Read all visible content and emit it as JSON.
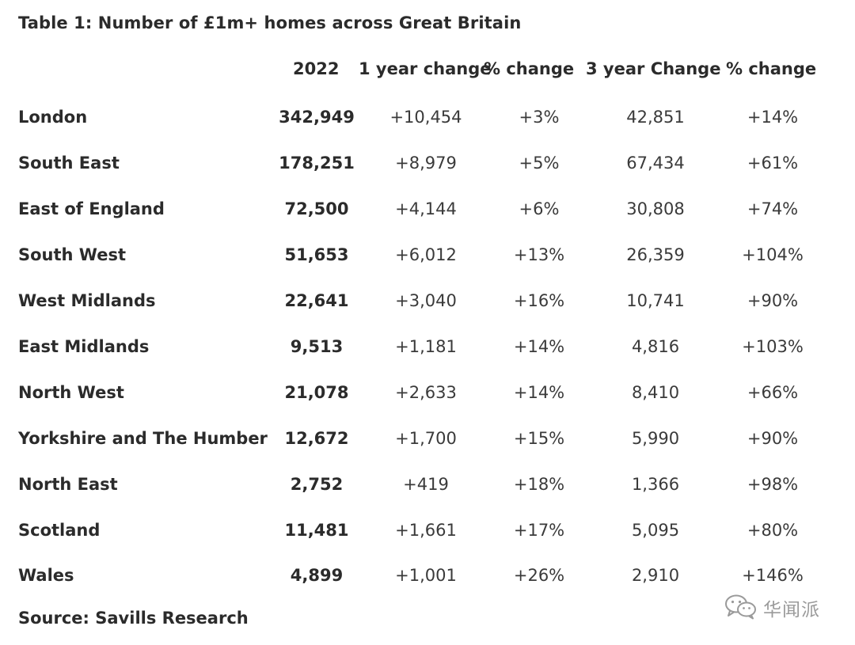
{
  "title": "Table 1: Number of £1m+ homes across Great Britain",
  "headers": {
    "y2022": "2022",
    "one_year_change": "1 year change",
    "pct_change_1": "% change",
    "three_year_change": "3 year Change",
    "pct_change_3": "% change"
  },
  "rows": [
    {
      "region": "London",
      "y2022": "342,949",
      "c1": "+10,454",
      "c2": "+3%",
      "c3": "42,851",
      "c4": "+14%"
    },
    {
      "region": "South East",
      "y2022": "178,251",
      "c1": "+8,979",
      "c2": "+5%",
      "c3": "67,434",
      "c4": "+61%"
    },
    {
      "region": "East of England",
      "y2022": "72,500",
      "c1": "+4,144",
      "c2": "+6%",
      "c3": "30,808",
      "c4": "+74%"
    },
    {
      "region": "South West",
      "y2022": "51,653",
      "c1": "+6,012",
      "c2": "+13%",
      "c3": "26,359",
      "c4": "+104%"
    },
    {
      "region": "West Midlands",
      "y2022": "22,641",
      "c1": "+3,040",
      "c2": "+16%",
      "c3": "10,741",
      "c4": "+90%"
    },
    {
      "region": "East Midlands",
      "y2022": "9,513",
      "c1": "+1,181",
      "c2": "+14%",
      "c3": "4,816",
      "c4": "+103%"
    },
    {
      "region": "North West",
      "y2022": "21,078",
      "c1": "+2,633",
      "c2": "+14%",
      "c3": "8,410",
      "c4": "+66%"
    },
    {
      "region": "Yorkshire and The Humber",
      "y2022": "12,672",
      "c1": "+1,700",
      "c2": "+15%",
      "c3": "5,990",
      "c4": "+90%"
    },
    {
      "region": "North East",
      "y2022": "2,752",
      "c1": "+419",
      "c2": "+18%",
      "c3": "1,366",
      "c4": "+98%"
    },
    {
      "region": "Scotland",
      "y2022": "11,481",
      "c1": "+1,661",
      "c2": "+17%",
      "c3": "5,095",
      "c4": "+80%"
    },
    {
      "region": "Wales",
      "y2022": "4,899",
      "c1": "+1,001",
      "c2": "+26%",
      "c3": "2,910",
      "c4": "+146%"
    }
  ],
  "source": "Source: Savills Research",
  "watermark": {
    "icon": "wechat-icon",
    "text": "华闻派"
  }
}
